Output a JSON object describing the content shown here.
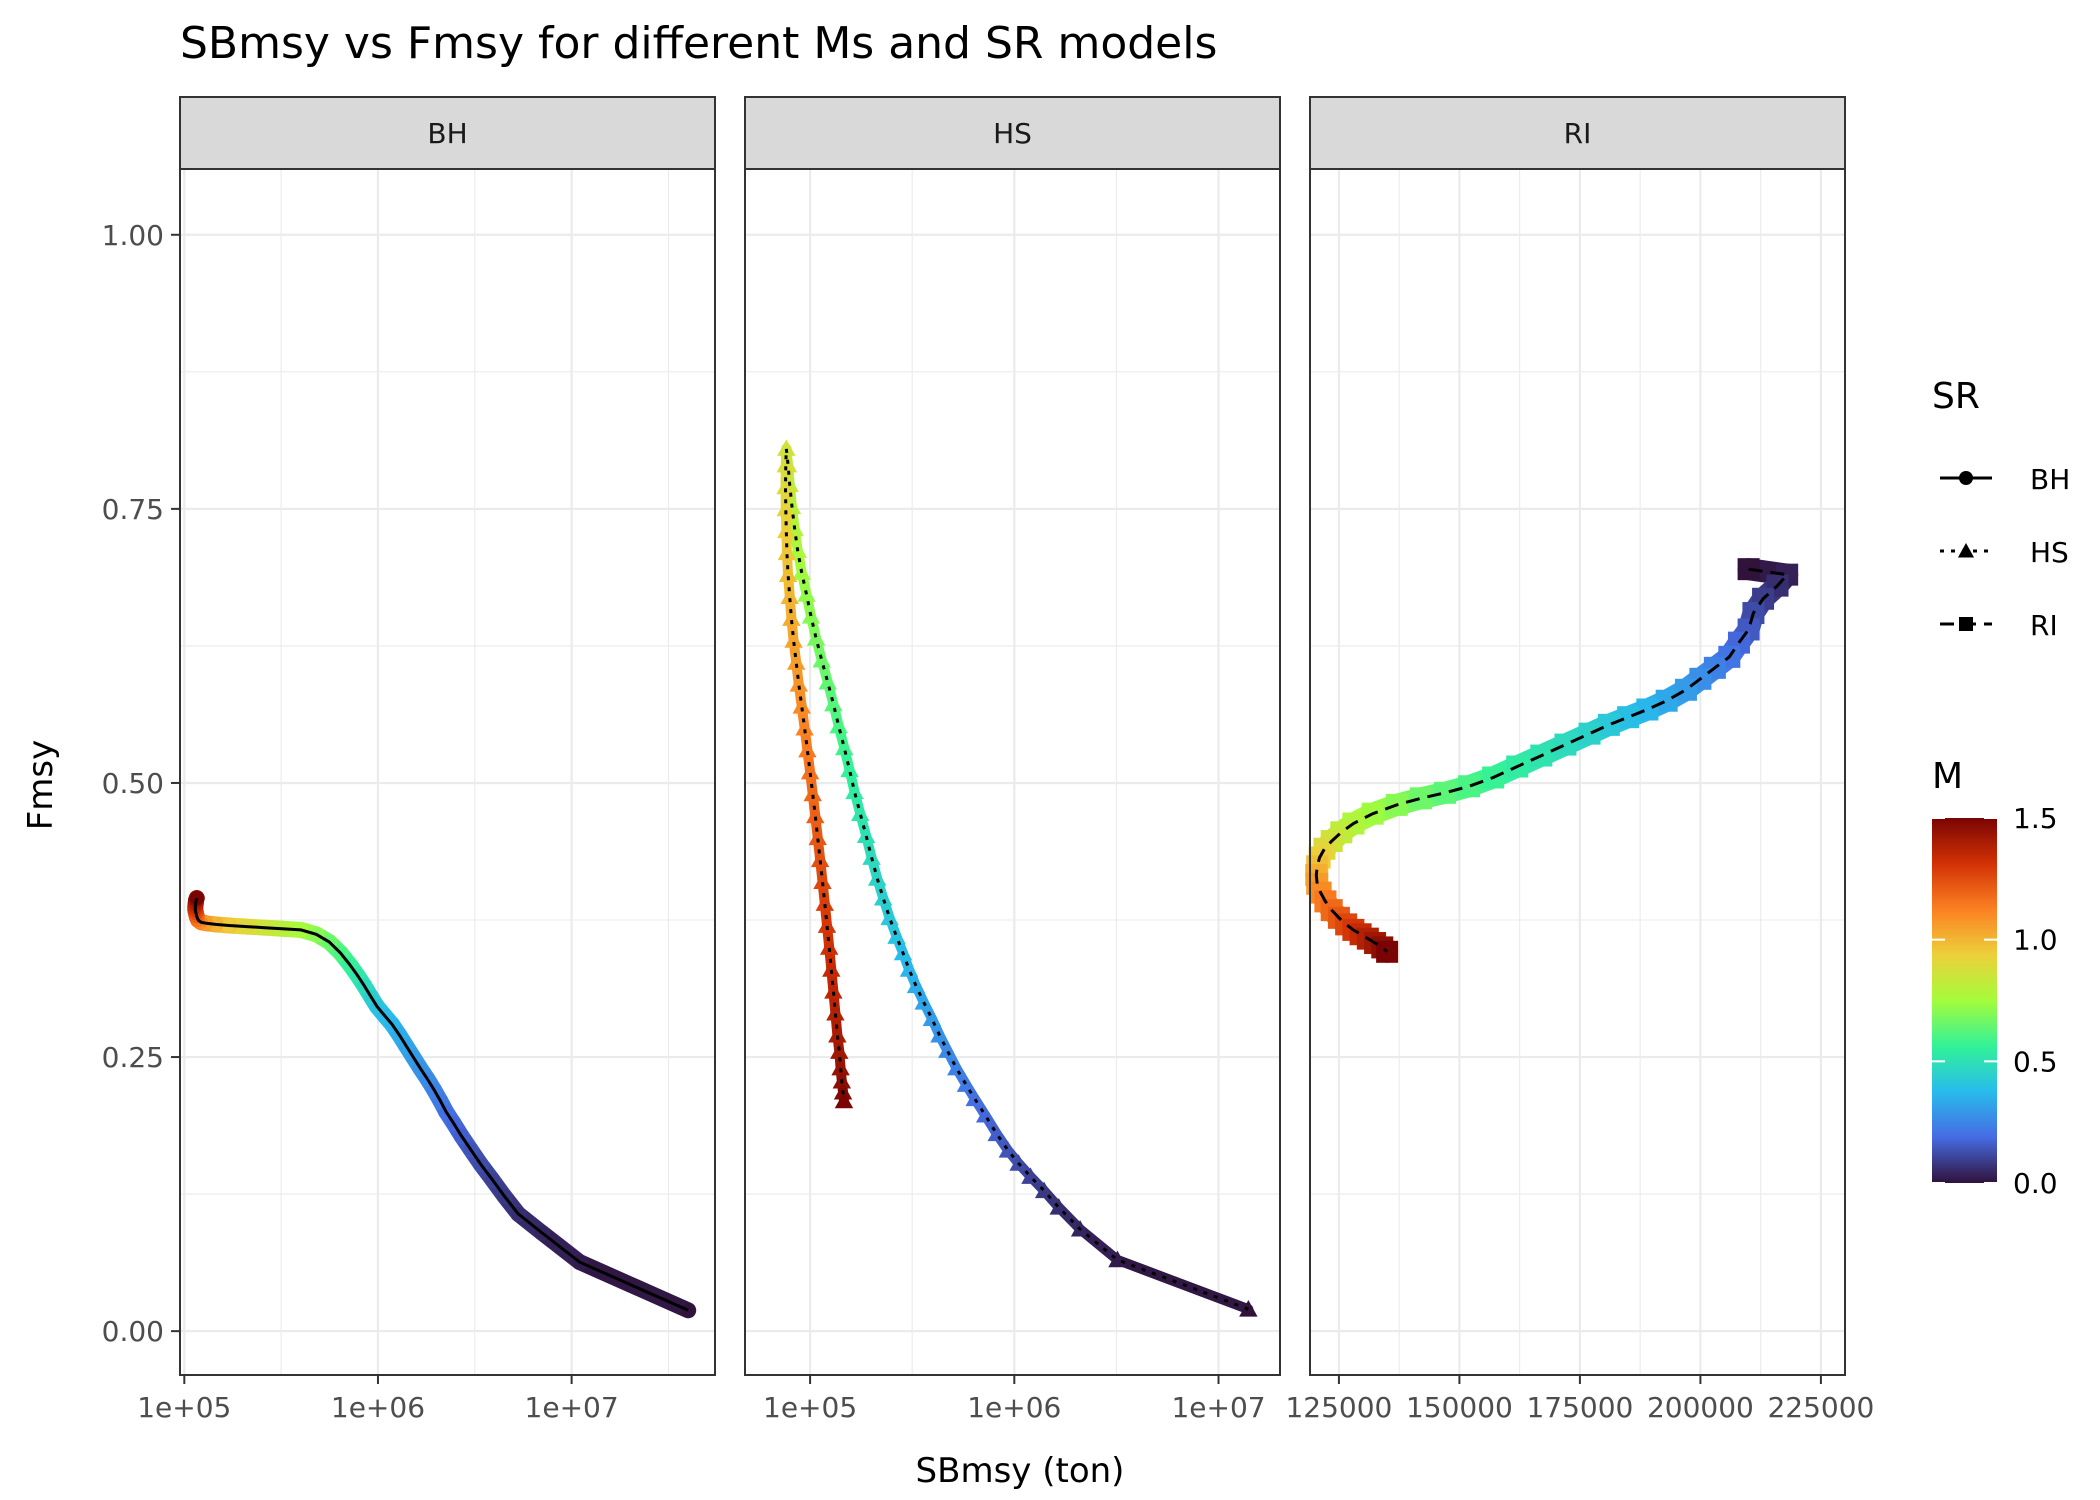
{
  "chart_data": {
    "type": "line",
    "title": "SBmsy vs Fmsy for different Ms and SR models",
    "xlabel": "SBmsy (ton)",
    "ylabel": "Fmsy",
    "ylim": [
      -0.04,
      1.06
    ],
    "y_ticks": [
      0.0,
      0.25,
      0.5,
      0.75,
      1.0
    ],
    "y_tick_labels": [
      "0.00",
      "0.25",
      "0.50",
      "0.75",
      "1.00"
    ],
    "grid": true,
    "color_variable": "M",
    "shape_variable": "SR",
    "legend_position": "right",
    "panels": [
      {
        "name": "BH",
        "x_scale": "log10",
        "xlim": [
          95000,
          55000000
        ],
        "x_ticks": [
          100000,
          1000000,
          10000000
        ],
        "x_tick_labels": [
          "1e+05",
          "1e+06",
          "1e+07"
        ],
        "points": [
          [
            40000000,
            0.019,
            0.0
          ],
          [
            11000000,
            0.063,
            0.02
          ],
          [
            7000000,
            0.09,
            0.04
          ],
          [
            5300000,
            0.107,
            0.06
          ],
          [
            4500000,
            0.123,
            0.08
          ],
          [
            3900000,
            0.138,
            0.1
          ],
          [
            3400000,
            0.152,
            0.12
          ],
          [
            3000000,
            0.166,
            0.14
          ],
          [
            2700000,
            0.178,
            0.16
          ],
          [
            2450000,
            0.19,
            0.18
          ],
          [
            2250000,
            0.2,
            0.2
          ],
          [
            2100000,
            0.21,
            0.22
          ],
          [
            1950000,
            0.22,
            0.24
          ],
          [
            1800000,
            0.23,
            0.26
          ],
          [
            1650000,
            0.24,
            0.28
          ],
          [
            1520000,
            0.25,
            0.3
          ],
          [
            1400000,
            0.26,
            0.32
          ],
          [
            1290000,
            0.27,
            0.34
          ],
          [
            1180000,
            0.28,
            0.36
          ],
          [
            1080000,
            0.288,
            0.38
          ],
          [
            990000,
            0.296,
            0.4
          ],
          [
            920000,
            0.305,
            0.44
          ],
          [
            850000,
            0.315,
            0.48
          ],
          [
            780000,
            0.325,
            0.52
          ],
          [
            710000,
            0.335,
            0.56
          ],
          [
            640000,
            0.345,
            0.6
          ],
          [
            560000,
            0.355,
            0.65
          ],
          [
            480000,
            0.362,
            0.7
          ],
          [
            400000,
            0.366,
            0.75
          ],
          [
            320000,
            0.367,
            0.8
          ],
          [
            260000,
            0.368,
            0.85
          ],
          [
            210000,
            0.369,
            0.9
          ],
          [
            170000,
            0.37,
            0.95
          ],
          [
            145000,
            0.371,
            1.0
          ],
          [
            130000,
            0.372,
            1.05
          ],
          [
            122000,
            0.373,
            1.1
          ],
          [
            118000,
            0.375,
            1.15
          ],
          [
            116000,
            0.378,
            1.2
          ],
          [
            115000,
            0.381,
            1.25
          ],
          [
            114000,
            0.384,
            1.3
          ],
          [
            114000,
            0.387,
            1.35
          ],
          [
            114500,
            0.39,
            1.4
          ],
          [
            115000,
            0.393,
            1.45
          ],
          [
            116000,
            0.395,
            1.5
          ]
        ]
      },
      {
        "name": "HS",
        "x_scale": "log10",
        "xlim": [
          48000,
          20000000
        ],
        "x_ticks": [
          100000,
          1000000,
          10000000
        ],
        "x_tick_labels": [
          "1e+05",
          "1e+06",
          "1e+07"
        ],
        "points": [
          [
            14000000,
            0.02,
            0.0
          ],
          [
            3200000,
            0.065,
            0.02
          ],
          [
            2100000,
            0.093,
            0.04
          ],
          [
            1650000,
            0.113,
            0.06
          ],
          [
            1400000,
            0.128,
            0.08
          ],
          [
            1200000,
            0.141,
            0.1
          ],
          [
            1050000,
            0.153,
            0.12
          ],
          [
            930000,
            0.165,
            0.14
          ],
          [
            820000,
            0.18,
            0.16
          ],
          [
            720000,
            0.197,
            0.18
          ],
          [
            640000,
            0.212,
            0.2
          ],
          [
            580000,
            0.225,
            0.22
          ],
          [
            520000,
            0.24,
            0.24
          ],
          [
            470000,
            0.256,
            0.26
          ],
          [
            430000,
            0.27,
            0.28
          ],
          [
            395000,
            0.285,
            0.3
          ],
          [
            360000,
            0.3,
            0.32
          ],
          [
            330000,
            0.315,
            0.34
          ],
          [
            305000,
            0.33,
            0.36
          ],
          [
            285000,
            0.345,
            0.38
          ],
          [
            265000,
            0.36,
            0.4
          ],
          [
            245000,
            0.377,
            0.42
          ],
          [
            228000,
            0.395,
            0.44
          ],
          [
            213000,
            0.413,
            0.46
          ],
          [
            200000,
            0.432,
            0.48
          ],
          [
            188000,
            0.452,
            0.5
          ],
          [
            176000,
            0.472,
            0.52
          ],
          [
            165000,
            0.492,
            0.54
          ],
          [
            156000,
            0.512,
            0.56
          ],
          [
            147000,
            0.532,
            0.58
          ],
          [
            138000,
            0.552,
            0.6
          ],
          [
            130000,
            0.572,
            0.62
          ],
          [
            122000,
            0.592,
            0.64
          ],
          [
            114000,
            0.612,
            0.66
          ],
          [
            107000,
            0.632,
            0.68
          ],
          [
            101000,
            0.652,
            0.7
          ],
          [
            96000,
            0.672,
            0.72
          ],
          [
            91000,
            0.692,
            0.74
          ],
          [
            87000,
            0.712,
            0.76
          ],
          [
            84000,
            0.732,
            0.78
          ],
          [
            81500,
            0.752,
            0.8
          ],
          [
            79500,
            0.772,
            0.82
          ],
          [
            78000,
            0.79,
            0.84
          ],
          [
            76500,
            0.805,
            0.86
          ],
          [
            76000,
            0.79,
            0.88
          ],
          [
            75800,
            0.77,
            0.9
          ],
          [
            76000,
            0.75,
            0.92
          ],
          [
            76500,
            0.73,
            0.94
          ],
          [
            77000,
            0.71,
            0.96
          ],
          [
            78000,
            0.69,
            0.98
          ],
          [
            79500,
            0.67,
            1.0
          ],
          [
            81000,
            0.65,
            1.02
          ],
          [
            83000,
            0.63,
            1.04
          ],
          [
            85500,
            0.61,
            1.06
          ],
          [
            88000,
            0.59,
            1.08
          ],
          [
            91000,
            0.57,
            1.1
          ],
          [
            94000,
            0.55,
            1.12
          ],
          [
            97000,
            0.53,
            1.14
          ],
          [
            100000,
            0.51,
            1.16
          ],
          [
            103000,
            0.49,
            1.18
          ],
          [
            106000,
            0.47,
            1.2
          ],
          [
            109000,
            0.45,
            1.22
          ],
          [
            112000,
            0.43,
            1.24
          ],
          [
            115000,
            0.41,
            1.26
          ],
          [
            118000,
            0.39,
            1.28
          ],
          [
            121000,
            0.37,
            1.3
          ],
          [
            124000,
            0.35,
            1.32
          ],
          [
            127000,
            0.33,
            1.34
          ],
          [
            130000,
            0.31,
            1.36
          ],
          [
            133000,
            0.29,
            1.38
          ],
          [
            136000,
            0.27,
            1.4
          ],
          [
            139000,
            0.255,
            1.42
          ],
          [
            141000,
            0.24,
            1.44
          ],
          [
            143000,
            0.228,
            1.46
          ],
          [
            145000,
            0.218,
            1.48
          ],
          [
            146500,
            0.21,
            1.5
          ]
        ]
      },
      {
        "name": "RI",
        "x_scale": "linear",
        "xlim": [
          119000,
          230000
        ],
        "x_ticks": [
          125000,
          150000,
          175000,
          200000,
          225000
        ],
        "x_tick_labels": [
          "125000",
          "150000",
          "175000",
          "200000",
          "225000"
        ],
        "points": [
          [
            210000,
            0.695,
            0.0
          ],
          [
            218000,
            0.69,
            0.03
          ],
          [
            216000,
            0.68,
            0.06
          ],
          [
            213000,
            0.668,
            0.09
          ],
          [
            211000,
            0.655,
            0.12
          ],
          [
            210000,
            0.64,
            0.15
          ],
          [
            208000,
            0.628,
            0.18
          ],
          [
            206000,
            0.615,
            0.21
          ],
          [
            203000,
            0.605,
            0.24
          ],
          [
            200000,
            0.595,
            0.27
          ],
          [
            197000,
            0.585,
            0.3
          ],
          [
            193000,
            0.575,
            0.33
          ],
          [
            189000,
            0.567,
            0.36
          ],
          [
            185000,
            0.56,
            0.39
          ],
          [
            181000,
            0.553,
            0.42
          ],
          [
            177000,
            0.545,
            0.45
          ],
          [
            172000,
            0.535,
            0.48
          ],
          [
            167000,
            0.525,
            0.51
          ],
          [
            162000,
            0.515,
            0.54
          ],
          [
            157000,
            0.505,
            0.57
          ],
          [
            152000,
            0.497,
            0.6
          ],
          [
            147000,
            0.491,
            0.63
          ],
          [
            142000,
            0.486,
            0.66
          ],
          [
            137000,
            0.48,
            0.7
          ],
          [
            132000,
            0.472,
            0.74
          ],
          [
            128000,
            0.463,
            0.78
          ],
          [
            125500,
            0.455,
            0.82
          ],
          [
            123500,
            0.447,
            0.86
          ],
          [
            122000,
            0.44,
            0.9
          ],
          [
            121000,
            0.432,
            0.94
          ],
          [
            120500,
            0.424,
            0.98
          ],
          [
            120300,
            0.416,
            1.02
          ],
          [
            120500,
            0.408,
            1.06
          ],
          [
            121200,
            0.4,
            1.1
          ],
          [
            122200,
            0.392,
            1.14
          ],
          [
            123500,
            0.384,
            1.18
          ],
          [
            125000,
            0.377,
            1.22
          ],
          [
            126500,
            0.371,
            1.26
          ],
          [
            128000,
            0.366,
            1.3
          ],
          [
            129500,
            0.362,
            1.34
          ],
          [
            131000,
            0.358,
            1.38
          ],
          [
            132500,
            0.354,
            1.42
          ],
          [
            134000,
            0.35,
            1.46
          ],
          [
            135000,
            0.346,
            1.5
          ]
        ]
      }
    ],
    "legend_sr": {
      "title": "SR",
      "items": [
        {
          "label": "BH",
          "shape": "circle",
          "linetype": "solid"
        },
        {
          "label": "HS",
          "shape": "triangle",
          "linetype": "dotted"
        },
        {
          "label": "RI",
          "shape": "square",
          "linetype": "dashed"
        }
      ]
    },
    "legend_m": {
      "title": "M",
      "range": [
        0.0,
        1.5
      ],
      "ticks": [
        0.0,
        0.5,
        1.0,
        1.5
      ],
      "tick_labels": [
        "0.0",
        "0.5",
        "1.0",
        "1.5"
      ],
      "palette": "turbo"
    }
  }
}
